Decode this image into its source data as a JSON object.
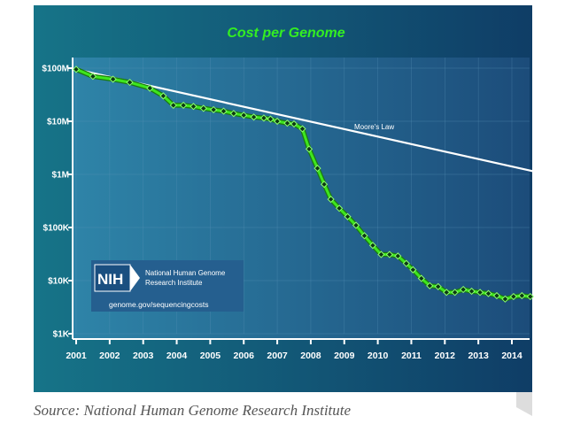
{
  "chart_data": {
    "type": "line",
    "title": "Cost per Genome",
    "scale": "log",
    "ylim": [
      1000,
      100000000
    ],
    "y_ticks": [
      {
        "value": 100000000,
        "label": "$100M"
      },
      {
        "value": 10000000,
        "label": "$10M"
      },
      {
        "value": 1000000,
        "label": "$1M"
      },
      {
        "value": 100000,
        "label": "$100K"
      },
      {
        "value": 10000,
        "label": "$10K"
      },
      {
        "value": 1000,
        "label": "$1K"
      }
    ],
    "x_ticks": [
      "2001",
      "2002",
      "2003",
      "2004",
      "2005",
      "2006",
      "2007",
      "2008",
      "2009",
      "2010",
      "2011",
      "2012",
      "2013",
      "2014"
    ],
    "xlim": [
      2001.0,
      2014.9
    ],
    "series": [
      {
        "name": "Cost per Genome",
        "color": "#3ee61e",
        "points": [
          [
            2001.0,
            95000000
          ],
          [
            2001.5,
            70000000
          ],
          [
            2002.1,
            62000000
          ],
          [
            2002.6,
            54000000
          ],
          [
            2003.2,
            42000000
          ],
          [
            2003.6,
            30000000
          ],
          [
            2003.9,
            20000000
          ],
          [
            2004.2,
            20000000
          ],
          [
            2004.5,
            19000000
          ],
          [
            2004.8,
            17500000
          ],
          [
            2005.1,
            16500000
          ],
          [
            2005.4,
            15500000
          ],
          [
            2005.7,
            14000000
          ],
          [
            2006.0,
            13000000
          ],
          [
            2006.3,
            12000000
          ],
          [
            2006.6,
            11500000
          ],
          [
            2006.8,
            11000000
          ],
          [
            2007.0,
            10000000
          ],
          [
            2007.3,
            9200000
          ],
          [
            2007.5,
            8900000
          ],
          [
            2007.75,
            7200000
          ],
          [
            2007.95,
            3000000
          ],
          [
            2008.2,
            1300000
          ],
          [
            2008.4,
            650000
          ],
          [
            2008.6,
            340000
          ],
          [
            2008.85,
            230000
          ],
          [
            2009.1,
            160000
          ],
          [
            2009.35,
            110000
          ],
          [
            2009.6,
            70000
          ],
          [
            2009.85,
            46000
          ],
          [
            2010.1,
            31000
          ],
          [
            2010.35,
            31000
          ],
          [
            2010.6,
            29000
          ],
          [
            2010.85,
            21000
          ],
          [
            2011.05,
            16000
          ],
          [
            2011.3,
            11000
          ],
          [
            2011.55,
            8000
          ],
          [
            2011.8,
            7700
          ],
          [
            2012.05,
            6000
          ],
          [
            2012.3,
            6000
          ],
          [
            2012.55,
            6800
          ],
          [
            2012.8,
            6300
          ],
          [
            2013.05,
            6000
          ],
          [
            2013.3,
            5700
          ],
          [
            2013.55,
            5200
          ],
          [
            2013.8,
            4500
          ],
          [
            2014.05,
            5000
          ],
          [
            2014.3,
            5200
          ],
          [
            2014.55,
            5000
          ]
        ]
      },
      {
        "name": "Moore's Law",
        "label": "Moore's Law",
        "color": "#ffffff",
        "points": [
          [
            2001.0,
            95000000
          ],
          [
            2014.9,
            1050000
          ]
        ]
      }
    ]
  },
  "logo": {
    "acronym": "NIH",
    "name_line1": "National Human Genome",
    "name_line2": "Research Institute",
    "url": "genome.gov/sequencingcosts"
  },
  "source": "Source: National Human Genome Research Institute",
  "colors": {
    "panel": "#14687e",
    "panel_edge": "#0a3f5e",
    "plot_bg": "#1d6a93",
    "cost_line": "#3ee61e",
    "moore_line": "#ffffff"
  }
}
